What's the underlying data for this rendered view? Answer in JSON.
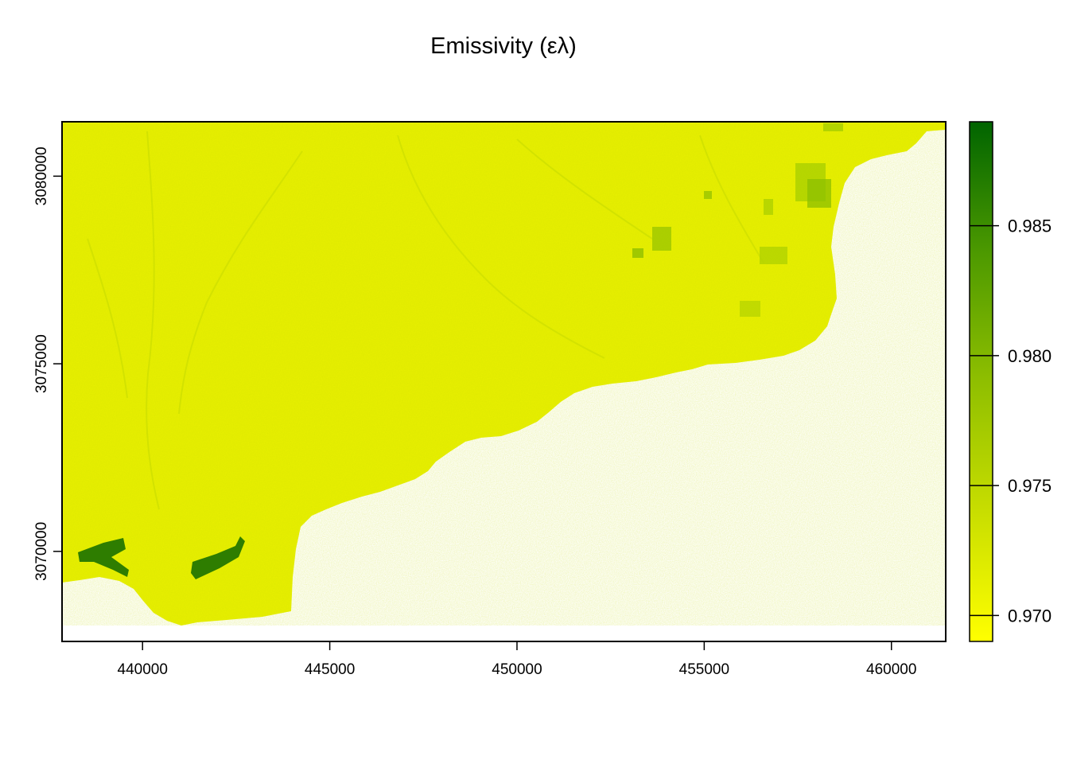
{
  "chart_data": {
    "type": "heatmap",
    "title": "Emissivity (ελ)",
    "x_ticks": [
      "440000",
      "445000",
      "450000",
      "455000",
      "460000"
    ],
    "x_tick_values": [
      440000,
      445000,
      450000,
      455000,
      460000
    ],
    "y_ticks": [
      "3070000",
      "3075000",
      "3080000"
    ],
    "y_tick_values": [
      3070000,
      3075000,
      3080000
    ],
    "xlim": [
      437850,
      461450
    ],
    "ylim": [
      3067600,
      3081450
    ],
    "legend": {
      "placement": "right",
      "ticks": [
        "0.970",
        "0.975",
        "0.980",
        "0.985"
      ],
      "tick_values": [
        0.97,
        0.975,
        0.98,
        0.985
      ],
      "range": [
        0.969,
        0.989
      ],
      "color_low": "#ffff00",
      "color_high": "#006400"
    },
    "dominant_range": [
      0.97,
      0.973
    ],
    "no_data_color": "#ffffff",
    "colors": [
      "#ffff00",
      "#c8de00",
      "#8fbf00",
      "#4c9900",
      "#006400"
    ]
  }
}
